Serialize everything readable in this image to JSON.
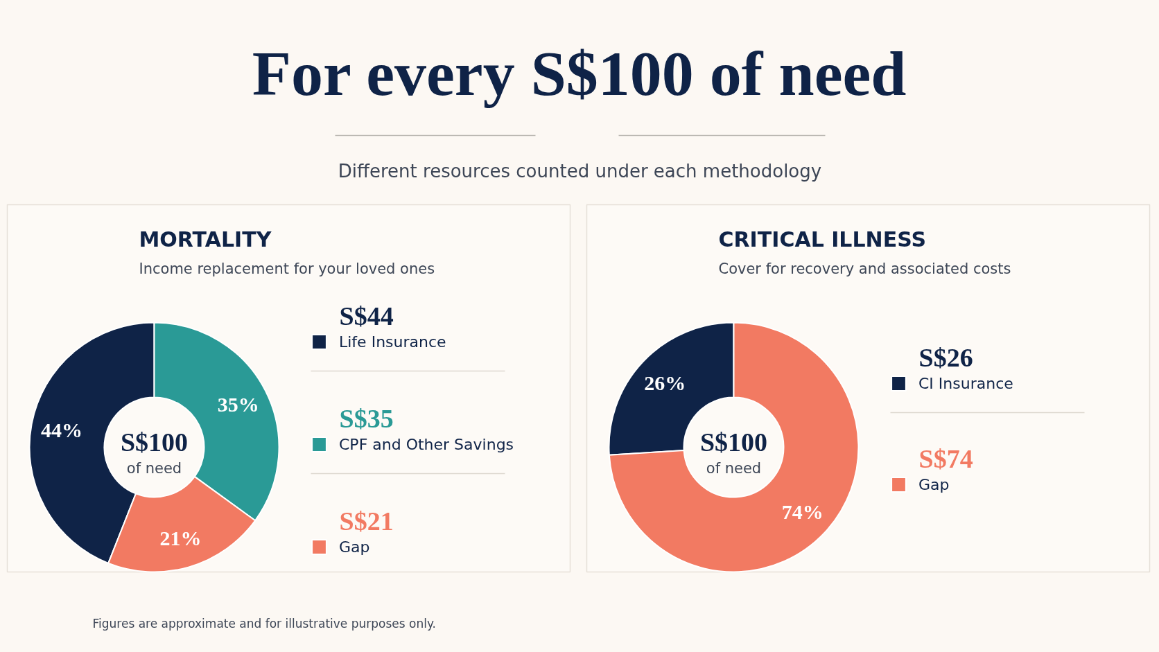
{
  "chart_data": [
    {
      "type": "other",
      "title": "For every S$100 of need",
      "subtitle": "Different resources counted under each methodology",
      "annotations": [
        "Figures are approximate and for illustrative purposes only."
      ]
    },
    {
      "type": "donut",
      "title": "MORTALITY",
      "subtitle": "Income replacement for your loved ones",
      "categories": [
        "Life Insurance",
        "CPF and Other Savings",
        "Gap"
      ],
      "values": [
        44,
        35,
        21
      ],
      "colors": [
        "#0f2347",
        "#2a9a96",
        "#f27a62"
      ],
      "value_labels": [
        "44%",
        "35%",
        "21%"
      ],
      "legend": "right",
      "annotations": [
        "S$100",
        "of need",
        "S$44",
        "S$35",
        "S$21"
      ]
    },
    {
      "type": "donut",
      "title": "CRITICAL ILLNESS",
      "subtitle": "Cover for recovery and associated costs",
      "categories": [
        "CI Insurance",
        "Gap"
      ],
      "values": [
        26,
        74
      ],
      "colors": [
        "#0f2347",
        "#f27a62"
      ],
      "value_labels": [
        "26%",
        "74%"
      ],
      "legend": "right",
      "annotations": [
        "S$100",
        "of need",
        "S$26",
        "S$74"
      ]
    }
  ]
}
